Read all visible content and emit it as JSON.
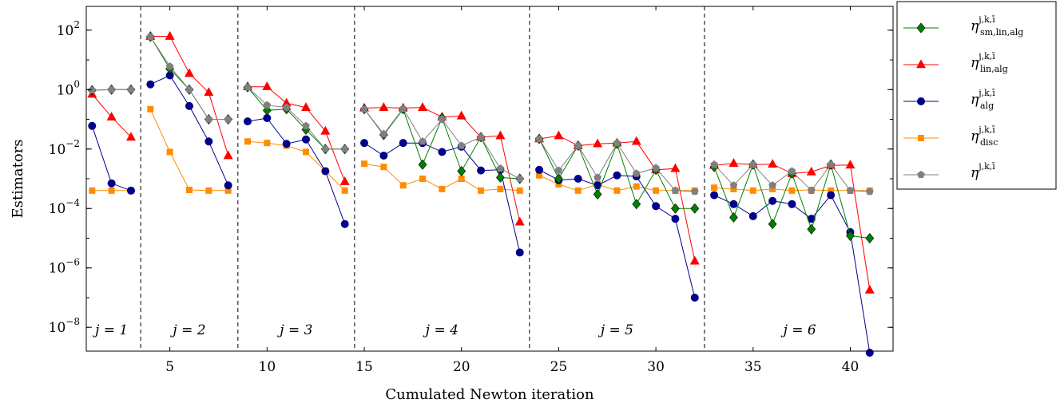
{
  "chart_data": {
    "type": "line",
    "xlabel": "Cumulated Newton iteration",
    "ylabel": "Estimators",
    "xlim": [
      0.7,
      42.2
    ],
    "ylim_log10": [
      -8.8,
      2.8
    ],
    "y_scale": "log",
    "x_ticks": [
      5,
      10,
      15,
      20,
      25,
      30,
      35,
      40
    ],
    "y_ticks": [
      {
        "exp": 2,
        "label": "2"
      },
      {
        "exp": 0,
        "label": "0"
      },
      {
        "exp": -2,
        "label": "−2"
      },
      {
        "exp": -4,
        "label": "−4"
      },
      {
        "exp": -6,
        "label": "−6"
      },
      {
        "exp": -8,
        "label": "−8"
      }
    ],
    "y_tick_base": "10",
    "phase_separators": [
      3.5,
      8.5,
      14.5,
      23.5,
      32.5
    ],
    "phase_labels": [
      {
        "text": "j = 1",
        "x": 2
      },
      {
        "text": "j = 2",
        "x": 6
      },
      {
        "text": "j = 3",
        "x": 11.5
      },
      {
        "text": "j = 4",
        "x": 19
      },
      {
        "text": "j = 5",
        "x": 28
      },
      {
        "text": "j = 6",
        "x": 37.4
      }
    ],
    "legend_position": "outside-right",
    "series": [
      {
        "name": "η^{j,k,ī}_{sm,lin,alg}",
        "legend_main": "η",
        "legend_sup": "j,k,ī",
        "legend_sub": "sm,lin,alg",
        "color": "#008000",
        "marker": "diamond",
        "segments": [
          [
            [
              1,
              0.95
            ],
            [
              2,
              1.0
            ],
            [
              3,
              1.0
            ]
          ],
          [
            [
              4,
              60
            ],
            [
              5,
              5
            ],
            [
              6,
              1.0
            ],
            [
              7,
              0.1
            ],
            [
              8,
              0.1
            ]
          ],
          [
            [
              9,
              1.2
            ],
            [
              10,
              0.2
            ],
            [
              11,
              0.22
            ],
            [
              12,
              0.045
            ],
            [
              13,
              0.01
            ],
            [
              14,
              0.01
            ]
          ],
          [
            [
              15,
              0.22
            ],
            [
              16,
              0.03
            ],
            [
              17,
              0.22
            ],
            [
              18,
              0.003
            ],
            [
              19,
              0.11
            ],
            [
              20,
              0.0018
            ],
            [
              21,
              0.025
            ],
            [
              22,
              0.0011
            ],
            [
              23,
              0.001
            ]
          ],
          [
            [
              24,
              0.022
            ],
            [
              25,
              0.001
            ],
            [
              26,
              0.013
            ],
            [
              27,
              0.0003
            ],
            [
              28,
              0.015
            ],
            [
              29,
              0.00014
            ],
            [
              30,
              0.002
            ],
            [
              31,
              0.0001
            ],
            [
              32,
              0.0001
            ]
          ],
          [
            [
              33,
              0.0025
            ],
            [
              34,
              5e-05
            ],
            [
              35,
              0.003
            ],
            [
              36,
              3e-05
            ],
            [
              37,
              0.0015
            ],
            [
              38,
              2e-05
            ],
            [
              39,
              0.003
            ],
            [
              40,
              1.2e-05
            ],
            [
              41,
              1e-05
            ]
          ]
        ]
      },
      {
        "name": "η^{j,k,ī}_{lin,alg}",
        "legend_main": "η",
        "legend_sup": "j,k,ī",
        "legend_sub": "lin,alg",
        "color": "#ff0000",
        "marker": "triangle",
        "segments": [
          [
            [
              1,
              0.7
            ],
            [
              2,
              0.12
            ],
            [
              3,
              0.025
            ]
          ],
          [
            [
              4,
              62
            ],
            [
              5,
              62
            ],
            [
              6,
              3.5
            ],
            [
              7,
              0.8
            ],
            [
              8,
              0.006
            ]
          ],
          [
            [
              9,
              1.25
            ],
            [
              10,
              1.25
            ],
            [
              11,
              0.35
            ],
            [
              12,
              0.25
            ],
            [
              13,
              0.04
            ],
            [
              14,
              0.0008
            ]
          ],
          [
            [
              15,
              0.24
            ],
            [
              16,
              0.25
            ],
            [
              17,
              0.24
            ],
            [
              18,
              0.25
            ],
            [
              19,
              0.12
            ],
            [
              20,
              0.13
            ],
            [
              21,
              0.025
            ],
            [
              22,
              0.028
            ],
            [
              23,
              3.5e-05
            ]
          ],
          [
            [
              24,
              0.022
            ],
            [
              25,
              0.028
            ],
            [
              26,
              0.013
            ],
            [
              27,
              0.015
            ],
            [
              28,
              0.016
            ],
            [
              29,
              0.018
            ],
            [
              30,
              0.002
            ],
            [
              31,
              0.0022
            ],
            [
              32,
              1.7e-06
            ]
          ],
          [
            [
              33,
              0.0028
            ],
            [
              34,
              0.0033
            ],
            [
              35,
              0.003
            ],
            [
              36,
              0.0031
            ],
            [
              37,
              0.0015
            ],
            [
              38,
              0.0017
            ],
            [
              39,
              0.0028
            ],
            [
              40,
              0.0029
            ],
            [
              41,
              1.8e-07
            ]
          ]
        ]
      },
      {
        "name": "η^{j,k,ī}_{alg}",
        "legend_main": "η",
        "legend_sup": "j,k,ī",
        "legend_sub": "alg",
        "color": "#00008b",
        "marker": "circle",
        "segments": [
          [
            [
              1,
              0.06
            ],
            [
              2,
              0.0007
            ],
            [
              3,
              0.0004
            ]
          ],
          [
            [
              4,
              1.5
            ],
            [
              5,
              3.0
            ],
            [
              6,
              0.28
            ],
            [
              7,
              0.018
            ],
            [
              8,
              0.0006
            ]
          ],
          [
            [
              9,
              0.085
            ],
            [
              10,
              0.11
            ],
            [
              11,
              0.015
            ],
            [
              12,
              0.021
            ],
            [
              13,
              0.0018
            ],
            [
              14,
              3e-05
            ]
          ],
          [
            [
              15,
              0.016
            ],
            [
              16,
              0.006
            ],
            [
              17,
              0.016
            ],
            [
              18,
              0.016
            ],
            [
              19,
              0.008
            ],
            [
              20,
              0.012
            ],
            [
              21,
              0.0019
            ],
            [
              22,
              0.002
            ],
            [
              23,
              3.3e-06
            ]
          ],
          [
            [
              24,
              0.002
            ],
            [
              25,
              0.0009
            ],
            [
              26,
              0.001
            ],
            [
              27,
              0.0006
            ],
            [
              28,
              0.0013
            ],
            [
              29,
              0.0012
            ],
            [
              30,
              0.00012
            ],
            [
              31,
              4.5e-05
            ],
            [
              32,
              1e-07
            ]
          ],
          [
            [
              33,
              0.00028
            ],
            [
              34,
              0.00014
            ],
            [
              35,
              5.5e-05
            ],
            [
              36,
              0.00018
            ],
            [
              37,
              0.00014
            ],
            [
              38,
              4.5e-05
            ],
            [
              39,
              0.00028
            ],
            [
              40,
              1.6e-05
            ],
            [
              41,
              1.4e-09
            ]
          ]
        ]
      },
      {
        "name": "η^{j,k,ī}_{disc}",
        "legend_main": "η",
        "legend_sup": "j,k,ī",
        "legend_sub": "disc",
        "color": "#ff8c00",
        "marker": "square",
        "segments": [
          [
            [
              1,
              0.0004
            ],
            [
              2,
              0.0004
            ],
            [
              3,
              0.0004
            ]
          ],
          [
            [
              4,
              0.22
            ],
            [
              5,
              0.008
            ],
            [
              6,
              0.00042
            ],
            [
              7,
              0.0004
            ],
            [
              8,
              0.0004
            ]
          ],
          [
            [
              9,
              0.018
            ],
            [
              10,
              0.016
            ],
            [
              11,
              0.013
            ],
            [
              12,
              0.008
            ],
            [
              13,
              0.0018
            ],
            [
              14,
              0.0004
            ]
          ],
          [
            [
              15,
              0.0032
            ],
            [
              16,
              0.0025
            ],
            [
              17,
              0.0006
            ],
            [
              18,
              0.001
            ],
            [
              19,
              0.00045
            ],
            [
              20,
              0.001
            ],
            [
              21,
              0.0004
            ],
            [
              22,
              0.00045
            ],
            [
              23,
              0.0004
            ]
          ],
          [
            [
              24,
              0.0013
            ],
            [
              25,
              0.00065
            ],
            [
              26,
              0.0004
            ],
            [
              27,
              0.00065
            ],
            [
              28,
              0.0004
            ],
            [
              29,
              0.00055
            ],
            [
              30,
              0.0004
            ],
            [
              31,
              0.0004
            ],
            [
              32,
              0.0004
            ]
          ],
          [
            [
              33,
              0.0005
            ],
            [
              34,
              0.00045
            ],
            [
              35,
              0.0004
            ],
            [
              36,
              0.00045
            ],
            [
              37,
              0.0004
            ],
            [
              38,
              0.00042
            ],
            [
              39,
              0.0004
            ],
            [
              40,
              0.0004
            ],
            [
              41,
              0.0004
            ]
          ]
        ]
      },
      {
        "name": "η^{j,k,ī}",
        "legend_main": "η",
        "legend_sup": "j,k,ī",
        "legend_sub": "",
        "color": "#808080",
        "marker": "pentagon",
        "segments": [
          [
            [
              1,
              0.95
            ],
            [
              2,
              1.0
            ],
            [
              3,
              1.0
            ]
          ],
          [
            [
              4,
              60
            ],
            [
              5,
              6
            ],
            [
              6,
              1.0
            ],
            [
              7,
              0.1
            ],
            [
              8,
              0.1
            ]
          ],
          [
            [
              9,
              1.2
            ],
            [
              10,
              0.3
            ],
            [
              11,
              0.25
            ],
            [
              12,
              0.06
            ],
            [
              13,
              0.01
            ],
            [
              14,
              0.01
            ]
          ],
          [
            [
              15,
              0.22
            ],
            [
              16,
              0.032
            ],
            [
              17,
              0.23
            ],
            [
              18,
              0.018
            ],
            [
              19,
              0.1
            ],
            [
              20,
              0.013
            ],
            [
              21,
              0.025
            ],
            [
              22,
              0.0022
            ],
            [
              23,
              0.001
            ]
          ],
          [
            [
              24,
              0.022
            ],
            [
              25,
              0.0019
            ],
            [
              26,
              0.013
            ],
            [
              27,
              0.0011
            ],
            [
              28,
              0.016
            ],
            [
              29,
              0.0015
            ],
            [
              30,
              0.0023
            ],
            [
              31,
              0.0004
            ],
            [
              32,
              0.00037
            ]
          ],
          [
            [
              33,
              0.003
            ],
            [
              34,
              0.0006
            ],
            [
              35,
              0.003
            ],
            [
              36,
              0.0006
            ],
            [
              37,
              0.0018
            ],
            [
              38,
              0.0004
            ],
            [
              39,
              0.003
            ],
            [
              40,
              0.0004
            ],
            [
              41,
              0.00037
            ]
          ]
        ]
      }
    ]
  }
}
